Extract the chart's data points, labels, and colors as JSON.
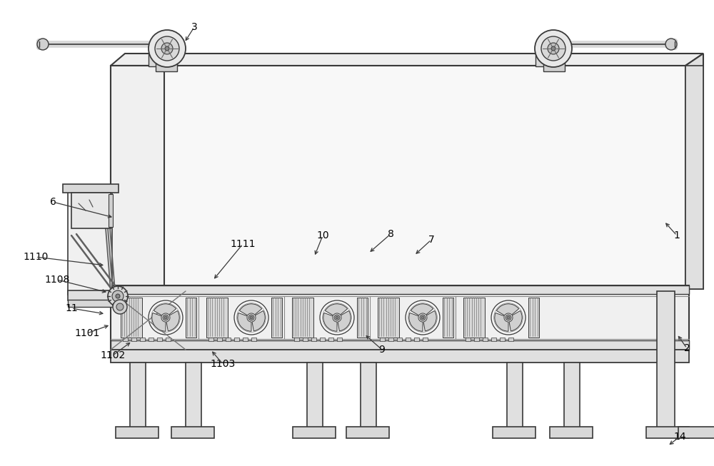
{
  "bg_color": "#ffffff",
  "line_color": "#3a3a3a",
  "lc2": "#555555",
  "fill_main": "#f8f8f8",
  "fill_panel": "#efefef",
  "fill_side": "#e8e8e8",
  "fill_dark": "#d8d8d8",
  "fill_med": "#e0e0e0",
  "figsize": [
    10.0,
    6.53
  ],
  "dpi": 100,
  "labels": [
    [
      "1",
      948,
      330,
      930,
      310,
      -1
    ],
    [
      "2",
      962,
      488,
      948,
      468,
      -1
    ],
    [
      "3",
      272,
      38,
      258,
      60,
      -1
    ],
    [
      "6",
      74,
      283,
      160,
      305,
      1
    ],
    [
      "7",
      604,
      336,
      580,
      358,
      -1
    ],
    [
      "8",
      547,
      328,
      516,
      355,
      -1
    ],
    [
      "9",
      535,
      490,
      510,
      468,
      -1
    ],
    [
      "10",
      452,
      330,
      440,
      360,
      -1
    ],
    [
      "11",
      100,
      432,
      148,
      440,
      1
    ],
    [
      "14",
      952,
      612,
      935,
      625,
      -1
    ],
    [
      "1101",
      122,
      467,
      155,
      455,
      1
    ],
    [
      "1102",
      158,
      498,
      185,
      478,
      1
    ],
    [
      "1103",
      312,
      510,
      295,
      490,
      1
    ],
    [
      "1108",
      80,
      392,
      152,
      410,
      1
    ],
    [
      "1110",
      50,
      360,
      148,
      372,
      1
    ],
    [
      "1111",
      340,
      342,
      298,
      393,
      1
    ]
  ]
}
